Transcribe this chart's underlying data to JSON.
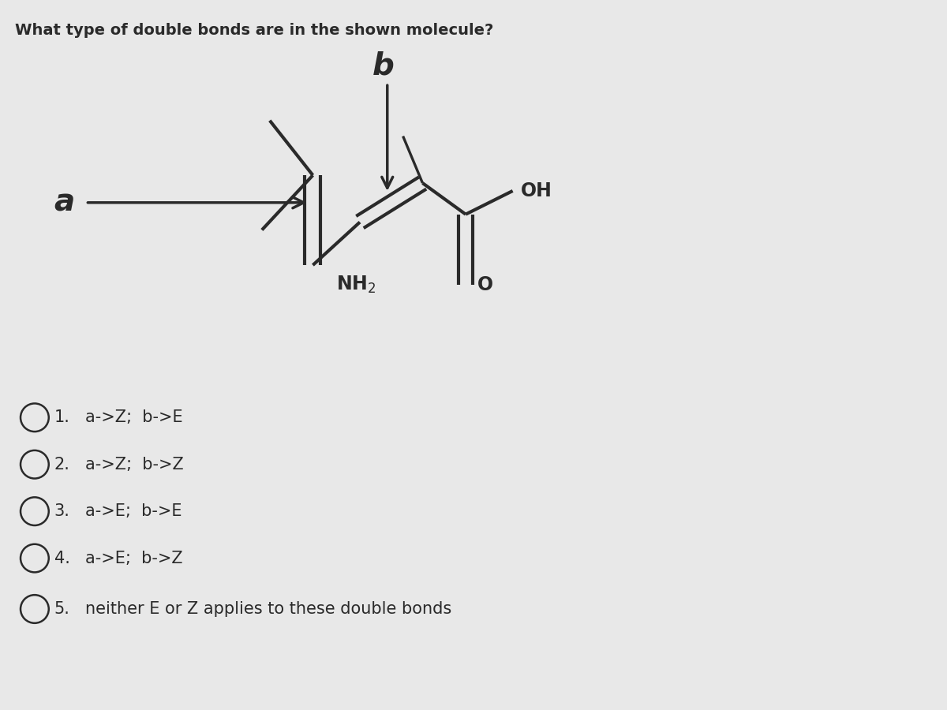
{
  "title": "What type of double bonds are in the shown molecule?",
  "title_fontsize": 14,
  "background_color": "#e8e8e8",
  "molecule_color": "#2a2a2a",
  "options": [
    {
      "text": "a->Z;  b->E"
    },
    {
      "text": "a->Z;  b->Z"
    },
    {
      "text": "a->E;  b->E"
    },
    {
      "text": "a->E;  b->Z"
    },
    {
      "text": "neither E or Z applies to these double bonds"
    }
  ],
  "option_fontsize": 15,
  "label_fontsize": 26,
  "mol_lw": 3.0,
  "mol_scale": 1.0
}
